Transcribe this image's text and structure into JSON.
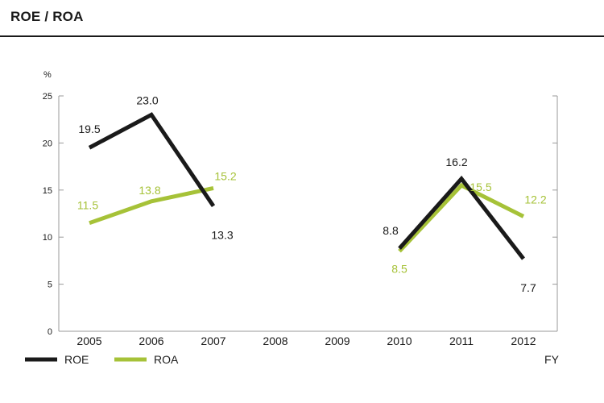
{
  "header": {
    "title": "ROE / ROA"
  },
  "chart_data": {
    "type": "line",
    "title": "ROE / ROA",
    "ylabel": "%",
    "xlabel": "FY",
    "ylim": [
      0,
      25
    ],
    "yticks": [
      0,
      5,
      10,
      15,
      20,
      25
    ],
    "categories": [
      "2005",
      "2006",
      "2007",
      "2008",
      "2009",
      "2010",
      "2011",
      "2012"
    ],
    "series": [
      {
        "name": "ROE",
        "color": "#1a1a1a",
        "values": [
          19.5,
          23.0,
          13.3,
          null,
          null,
          8.8,
          16.2,
          7.7
        ],
        "labels": [
          "19.5",
          "23.0",
          "13.3",
          null,
          null,
          "8.8",
          "16.2",
          "7.7"
        ]
      },
      {
        "name": "ROA",
        "color": "#a6c238",
        "values": [
          11.5,
          13.8,
          15.2,
          null,
          null,
          8.5,
          15.5,
          12.2
        ],
        "labels": [
          "11.5",
          "13.8",
          "15.2",
          null,
          null,
          "8.5",
          "15.5",
          "12.2"
        ]
      }
    ],
    "legend_position": "bottom-left"
  }
}
